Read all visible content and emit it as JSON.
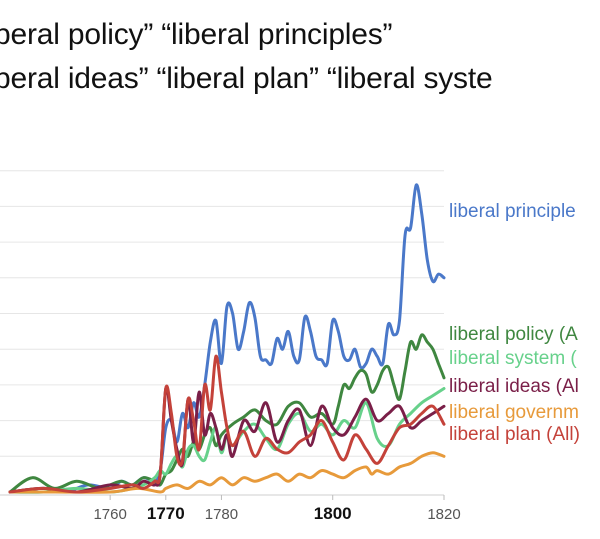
{
  "title_lines": [
    "beral policy”  “liberal principles”",
    "beral ideas” “liberal plan” “liberal syste"
  ],
  "chart_data": {
    "type": "line",
    "x_label_ticks": [
      {
        "value": 1760,
        "label": "1760",
        "major": false
      },
      {
        "value": 1770,
        "label": "1770",
        "major": true
      },
      {
        "value": 1780,
        "label": "1780",
        "major": false
      },
      {
        "value": 1800,
        "label": "1800",
        "major": true
      },
      {
        "value": 1820,
        "label": "1820",
        "major": false
      }
    ],
    "xlim": [
      1742,
      1820
    ],
    "ylim": [
      0,
      100
    ],
    "gridlines_y": [
      10,
      20,
      30,
      40,
      50,
      60,
      70,
      80,
      90
    ],
    "grid": true,
    "series": [
      {
        "name": "liberal principle",
        "color": "#4a78c9",
        "x": [
          1742,
          1748,
          1752,
          1756,
          1760,
          1762,
          1764,
          1766,
          1768,
          1769,
          1770,
          1771,
          1772,
          1773,
          1774,
          1775,
          1776,
          1777,
          1778,
          1779,
          1780,
          1781,
          1782,
          1783,
          1784,
          1785,
          1786,
          1787,
          1788,
          1789,
          1790,
          1791,
          1792,
          1793,
          1794,
          1795,
          1796,
          1797,
          1798,
          1799,
          1800,
          1801,
          1802,
          1803,
          1804,
          1805,
          1806,
          1807,
          1808,
          1809,
          1810,
          1811,
          1812,
          1813,
          1814,
          1815,
          1816,
          1817,
          1818,
          1819,
          1820
        ],
        "values": [
          0,
          1,
          0,
          2,
          1,
          3,
          2,
          4,
          3,
          6,
          18,
          20,
          14,
          22,
          18,
          25,
          21,
          30,
          42,
          48,
          36,
          52,
          50,
          40,
          45,
          53,
          49,
          38,
          37,
          36,
          43,
          40,
          45,
          38,
          37,
          49,
          45,
          38,
          37,
          36,
          48,
          45,
          38,
          37,
          40,
          35,
          36,
          40,
          38,
          36,
          47,
          44,
          48,
          72,
          74,
          86,
          78,
          65,
          59,
          61,
          60
        ]
      },
      {
        "name": "liberal policy (A",
        "color": "#3f8740",
        "x": [
          1742,
          1746,
          1750,
          1754,
          1758,
          1760,
          1762,
          1764,
          1766,
          1768,
          1769,
          1770,
          1771,
          1772,
          1773,
          1774,
          1775,
          1776,
          1777,
          1778,
          1779,
          1780,
          1782,
          1784,
          1786,
          1788,
          1790,
          1792,
          1794,
          1796,
          1798,
          1800,
          1801,
          1802,
          1803,
          1804,
          1805,
          1806,
          1807,
          1808,
          1809,
          1810,
          1811,
          1812,
          1813,
          1814,
          1815,
          1816,
          1817,
          1818,
          1819,
          1820
        ],
        "values": [
          0,
          4,
          1,
          3,
          1,
          2,
          3,
          2,
          4,
          3,
          2,
          5,
          6,
          9,
          12,
          10,
          14,
          12,
          16,
          18,
          13,
          16,
          19,
          21,
          23,
          20,
          19,
          24,
          25,
          21,
          22,
          19,
          24,
          30,
          29,
          32,
          34,
          33,
          28,
          30,
          34,
          35,
          30,
          26,
          34,
          42,
          40,
          44,
          42,
          40,
          36,
          32
        ]
      },
      {
        "name": "liberal system (",
        "color": "#67d18b",
        "x": [
          1742,
          1748,
          1754,
          1760,
          1764,
          1766,
          1768,
          1769,
          1770,
          1771,
          1772,
          1773,
          1774,
          1775,
          1776,
          1777,
          1778,
          1779,
          1780,
          1781,
          1782,
          1784,
          1786,
          1788,
          1790,
          1792,
          1794,
          1796,
          1798,
          1800,
          1802,
          1804,
          1806,
          1808,
          1810,
          1812,
          1814,
          1816,
          1818,
          1820
        ],
        "values": [
          0,
          0,
          1,
          0,
          1,
          2,
          4,
          6,
          5,
          8,
          10,
          7,
          12,
          13,
          10,
          9,
          14,
          18,
          11,
          16,
          13,
          17,
          19,
          15,
          12,
          19,
          22,
          17,
          19,
          16,
          20,
          18,
          25,
          15,
          13,
          19,
          22,
          25,
          27,
          29
        ]
      },
      {
        "name": "liberal ideas (Al",
        "color": "#7a1f48",
        "x": [
          1742,
          1748,
          1754,
          1760,
          1764,
          1766,
          1768,
          1769,
          1770,
          1771,
          1772,
          1773,
          1774,
          1775,
          1776,
          1777,
          1778,
          1779,
          1780,
          1781,
          1782,
          1784,
          1786,
          1788,
          1790,
          1792,
          1794,
          1796,
          1798,
          1800,
          1802,
          1804,
          1806,
          1808,
          1810,
          1812,
          1814,
          1816,
          1818,
          1820
        ],
        "values": [
          0,
          1,
          0,
          2,
          1,
          3,
          2,
          5,
          29,
          20,
          12,
          8,
          26,
          14,
          28,
          16,
          22,
          18,
          12,
          16,
          10,
          20,
          17,
          25,
          14,
          20,
          23,
          13,
          24,
          18,
          16,
          21,
          26,
          20,
          22,
          24,
          18,
          20,
          22,
          24
        ]
      },
      {
        "name": "liberal governm",
        "color": "#e79a3b",
        "x": [
          1742,
          1750,
          1760,
          1765,
          1769,
          1770,
          1772,
          1774,
          1776,
          1778,
          1780,
          1782,
          1784,
          1786,
          1788,
          1790,
          1792,
          1794,
          1796,
          1798,
          1800,
          1802,
          1804,
          1806,
          1807,
          1808,
          1810,
          1812,
          1814,
          1816,
          1818,
          1820
        ],
        "values": [
          0,
          0,
          0,
          1,
          0,
          1,
          2,
          1,
          3,
          2,
          4,
          2,
          4,
          3,
          4,
          5,
          3,
          5,
          4,
          6,
          5,
          4,
          6,
          7,
          5,
          6,
          5,
          7,
          8,
          10,
          11,
          10
        ]
      },
      {
        "name": "liberal plan (All)",
        "color": "#c4423a",
        "x": [
          1742,
          1748,
          1754,
          1760,
          1764,
          1766,
          1768,
          1769,
          1770,
          1771,
          1772,
          1773,
          1774,
          1775,
          1776,
          1777,
          1778,
          1779,
          1780,
          1781,
          1782,
          1784,
          1786,
          1788,
          1790,
          1792,
          1794,
          1796,
          1798,
          1800,
          1802,
          1804,
          1806,
          1808,
          1810,
          1812,
          1814,
          1816,
          1818,
          1820
        ],
        "values": [
          0,
          1,
          0,
          1,
          2,
          1,
          3,
          5,
          29,
          22,
          10,
          9,
          26,
          20,
          12,
          30,
          23,
          38,
          28,
          18,
          13,
          17,
          10,
          15,
          12,
          11,
          14,
          16,
          20,
          14,
          9,
          16,
          12,
          8,
          13,
          18,
          19,
          22,
          24,
          19
        ]
      }
    ],
    "labels_at_right": true
  }
}
